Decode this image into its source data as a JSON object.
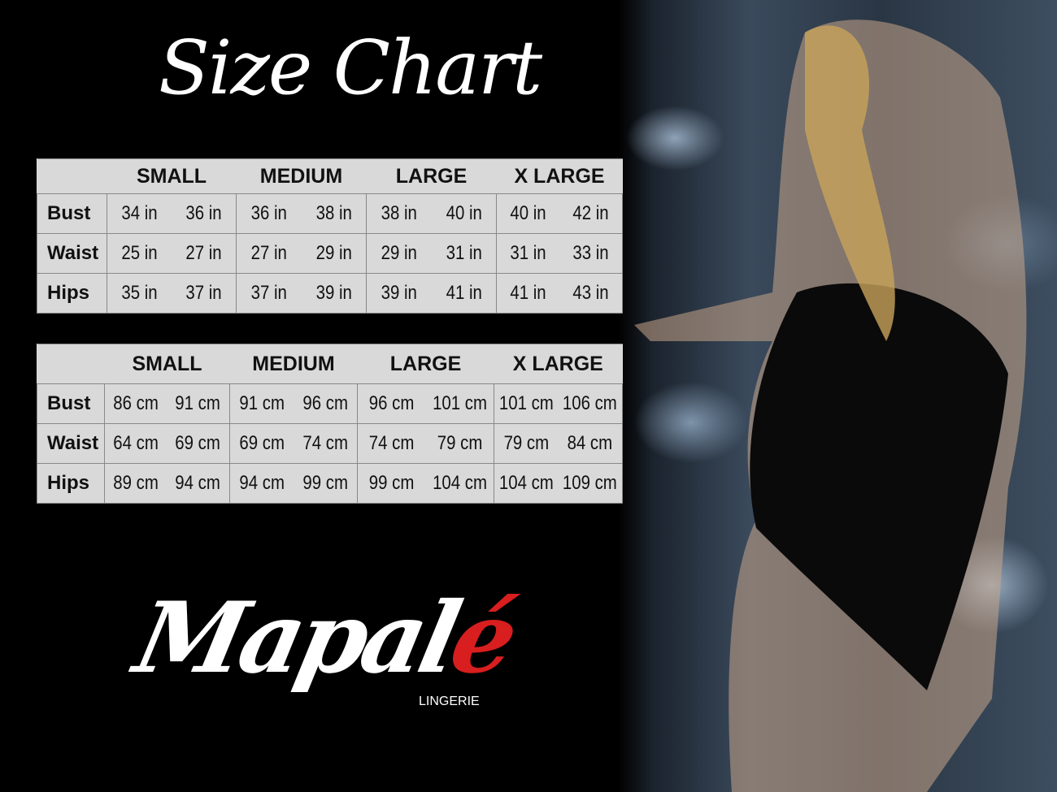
{
  "title": "Size Chart",
  "sizes": [
    "SMALL",
    "MEDIUM",
    "LARGE",
    "X LARGE"
  ],
  "table_in": {
    "rows": [
      {
        "label": "Bust",
        "values": [
          "34 in",
          "36 in",
          "36 in",
          "38 in",
          "38 in",
          "40 in",
          "40 in",
          "42 in"
        ]
      },
      {
        "label": "Waist",
        "values": [
          "25 in",
          "27 in",
          "27 in",
          "29 in",
          "29 in",
          "31 in",
          "31 in",
          "33 in"
        ]
      },
      {
        "label": "Hips",
        "values": [
          "35 in",
          "37 in",
          "37 in",
          "39 in",
          "39 in",
          "41 in",
          "41 in",
          "43 in"
        ]
      }
    ]
  },
  "table_cm": {
    "rows": [
      {
        "label": "Bust",
        "values": [
          "86 cm",
          "91 cm",
          "91 cm",
          "96 cm",
          "96 cm",
          "101 cm",
          "101 cm",
          "106 cm"
        ]
      },
      {
        "label": "Waist",
        "values": [
          "64 cm",
          "69 cm",
          "69 cm",
          "74 cm",
          "74 cm",
          "79  cm",
          "79 cm",
          "84 cm"
        ]
      },
      {
        "label": "Hips",
        "values": [
          "89 cm",
          "94 cm",
          "94 cm",
          "99 cm",
          "99 cm",
          "104 cm",
          "104 cm",
          "109 cm"
        ]
      }
    ]
  },
  "logo": {
    "main": "Mapal",
    "accent": "é",
    "sub": "LINGERIE",
    "accent_color": "#d81e1e"
  }
}
